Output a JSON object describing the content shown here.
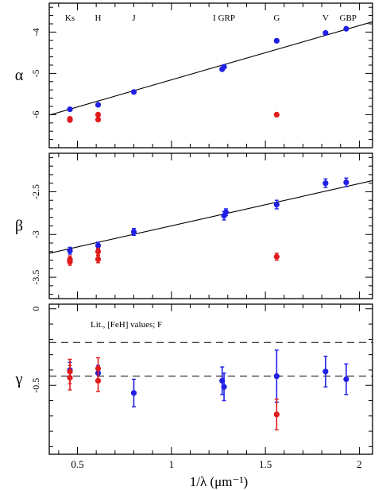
{
  "chart_data": [
    {
      "type": "scatter",
      "ylabel": "α",
      "x_range": [
        0.35,
        2.07
      ],
      "ylim": [
        -6.8,
        -3.3
      ],
      "yticks": [
        -4,
        -5,
        -6
      ],
      "band_labels": [
        {
          "text": "Ks",
          "x": 0.46
        },
        {
          "text": "H",
          "x": 0.61
        },
        {
          "text": "J",
          "x": 0.8
        },
        {
          "text": "I GRP",
          "x": 1.28
        },
        {
          "text": "G",
          "x": 1.56
        },
        {
          "text": "V",
          "x": 1.82
        },
        {
          "text": "GBP",
          "x": 1.94
        }
      ],
      "fit_line": {
        "x": [
          0.35,
          2.07
        ],
        "y": [
          -6.01,
          -3.75
        ]
      },
      "series": [
        {
          "color": "#1f1fe6",
          "points": [
            [
              0.46,
              -5.87
            ],
            [
              0.61,
              -5.76
            ],
            [
              0.8,
              -5.45
            ],
            [
              1.27,
              -4.9
            ],
            [
              1.28,
              -4.84
            ],
            [
              1.56,
              -4.21
            ],
            [
              1.82,
              -4.02
            ],
            [
              1.93,
              -3.92
            ]
          ],
          "errors": []
        },
        {
          "color": "#e01b1b",
          "points": [
            [
              0.46,
              -6.1
            ],
            [
              0.46,
              -6.13
            ],
            [
              0.61,
              -6.0
            ],
            [
              0.61,
              -6.12
            ],
            [
              1.56,
              -6.0
            ]
          ],
          "errors": []
        }
      ]
    },
    {
      "type": "scatter",
      "ylabel": "β",
      "x_range": [
        0.35,
        2.07
      ],
      "ylim": [
        -3.75,
        -2.05
      ],
      "yticks": [
        -2.5,
        -3,
        -3.5
      ],
      "fit_line": {
        "x": [
          0.35,
          2.07
        ],
        "y": [
          -3.22,
          -2.37
        ]
      },
      "series": [
        {
          "color": "#1f1fe6",
          "points": [
            [
              0.46,
              -3.19
            ],
            [
              0.61,
              -3.13
            ],
            [
              0.8,
              -2.97
            ],
            [
              1.28,
              -2.78
            ],
            [
              1.29,
              -2.74
            ],
            [
              1.56,
              -2.65
            ],
            [
              1.82,
              -2.4
            ],
            [
              1.93,
              -2.39
            ]
          ],
          "errors": [
            0.04,
            0.04,
            0.04,
            0.05,
            0.04,
            0.05,
            0.05,
            0.05
          ]
        },
        {
          "color": "#e01b1b",
          "points": [
            [
              0.46,
              -3.32
            ],
            [
              0.46,
              -3.29
            ],
            [
              0.61,
              -3.29
            ],
            [
              0.61,
              -3.2
            ],
            [
              1.56,
              -3.26
            ]
          ],
          "errors": [
            0.04,
            0.04,
            0.04,
            0.04,
            0.04
          ]
        }
      ]
    },
    {
      "type": "scatter",
      "ylabel": "γ",
      "xlabel": "1/λ (μm⁻¹)",
      "x_range": [
        0.35,
        2.07
      ],
      "ylim": [
        -0.95,
        0.03
      ],
      "yticks": [
        0,
        -0.5
      ],
      "xticks": [
        0.5,
        1,
        1.5,
        2
      ],
      "annotation": "Lit., [FeH] values; F",
      "dashed_lines": [
        -0.22,
        -0.44
      ],
      "series": [
        {
          "color": "#1f1fe6",
          "points": [
            [
              0.46,
              -0.4
            ],
            [
              0.61,
              -0.42
            ],
            [
              0.8,
              -0.55
            ],
            [
              1.27,
              -0.47
            ],
            [
              1.28,
              -0.51
            ],
            [
              1.56,
              -0.44
            ],
            [
              1.82,
              -0.41
            ],
            [
              1.93,
              -0.46
            ]
          ],
          "errors": [
            0.05,
            0.05,
            0.09,
            0.09,
            0.09,
            0.17,
            0.1,
            0.1
          ]
        },
        {
          "color": "#e01b1b",
          "points": [
            [
              0.46,
              -0.41
            ],
            [
              0.46,
              -0.45
            ],
            [
              0.61,
              -0.39
            ],
            [
              0.61,
              -0.47
            ],
            [
              1.56,
              -0.69
            ]
          ],
          "errors": [
            0.08,
            0.08,
            0.07,
            0.07,
            0.1
          ]
        }
      ]
    }
  ]
}
